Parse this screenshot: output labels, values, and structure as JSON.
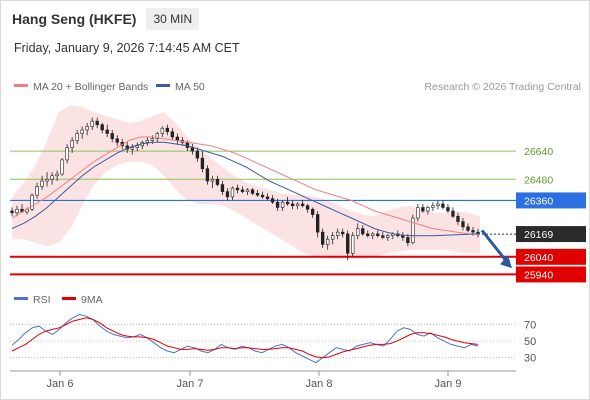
{
  "header": {
    "title": "Hang Seng (HKFE)",
    "interval": "30 MIN",
    "timestamp": "Friday, January 9, 2026 7:14:45 AM CET"
  },
  "legend": {
    "bollinger": "MA 20 + Bollinger Bands",
    "ma50": "MA 50",
    "copyright": "Research © 2026 Trading Central",
    "bollinger_color": "#f08080",
    "ma50_color": "#3a5ba0"
  },
  "rsi_legend": {
    "rsi": "RSI",
    "ma9": "9MA",
    "rsi_color": "#4a72d0",
    "ma9_color": "#e00000"
  },
  "chart_data": [
    {
      "type": "candlestick",
      "ylim": [
        25880,
        26930
      ],
      "x_labels": [
        "Jan 6",
        "Jan 7",
        "Jan 8",
        "Jan 9"
      ],
      "current_price": "26169",
      "levels": [
        {
          "label": "26640",
          "value": 26640,
          "kind": "target",
          "color": "#8dc060"
        },
        {
          "label": "26480",
          "value": 26480,
          "kind": "target",
          "color": "#8dc060"
        },
        {
          "label": "26360",
          "value": 26360,
          "kind": "pivot",
          "color": "#2c6fe0"
        },
        {
          "label": "26040",
          "value": 26040,
          "kind": "support",
          "color": "#e00000"
        },
        {
          "label": "25940",
          "value": 25940,
          "kind": "support",
          "color": "#e00000"
        }
      ],
      "forecast": {
        "from": 26190,
        "to": 25975,
        "color": "#2c5aa0"
      },
      "candles": [
        [
          26300,
          26320,
          26270,
          26290
        ],
        [
          26290,
          26330,
          26270,
          26310
        ],
        [
          26310,
          26340,
          26290,
          26295
        ],
        [
          26295,
          26320,
          26280,
          26310
        ],
        [
          26310,
          26400,
          26300,
          26390
        ],
        [
          26390,
          26460,
          26370,
          26440
        ],
        [
          26440,
          26500,
          26420,
          26470
        ],
        [
          26470,
          26520,
          26440,
          26480
        ],
        [
          26480,
          26520,
          26450,
          26500
        ],
        [
          26500,
          26530,
          26470,
          26510
        ],
        [
          26510,
          26600,
          26500,
          26590
        ],
        [
          26590,
          26680,
          26570,
          26660
        ],
        [
          26660,
          26720,
          26630,
          26700
        ],
        [
          26700,
          26760,
          26680,
          26740
        ],
        [
          26740,
          26780,
          26710,
          26760
        ],
        [
          26760,
          26800,
          26730,
          26780
        ],
        [
          26780,
          26830,
          26760,
          26810
        ],
        [
          26810,
          26830,
          26770,
          26790
        ],
        [
          26790,
          26800,
          26740,
          26760
        ],
        [
          26760,
          26790,
          26720,
          26740
        ],
        [
          26740,
          26760,
          26690,
          26710
        ],
        [
          26710,
          26730,
          26670,
          26690
        ],
        [
          26690,
          26710,
          26650,
          26670
        ],
        [
          26670,
          26690,
          26630,
          26650
        ],
        [
          26650,
          26680,
          26620,
          26660
        ],
        [
          26660,
          26690,
          26640,
          26670
        ],
        [
          26670,
          26700,
          26650,
          26690
        ],
        [
          26690,
          26720,
          26670,
          26700
        ],
        [
          26700,
          26730,
          26680,
          26710
        ],
        [
          26710,
          26750,
          26690,
          26740
        ],
        [
          26740,
          26780,
          26720,
          26770
        ],
        [
          26770,
          26790,
          26730,
          26750
        ],
        [
          26750,
          26770,
          26700,
          26720
        ],
        [
          26720,
          26740,
          26680,
          26700
        ],
        [
          26700,
          26720,
          26670,
          26690
        ],
        [
          26690,
          26700,
          26640,
          26660
        ],
        [
          26660,
          26680,
          26620,
          26640
        ],
        [
          26640,
          26660,
          26580,
          26600
        ],
        [
          26600,
          26640,
          26520,
          26540
        ],
        [
          26540,
          26560,
          26450,
          26470
        ],
        [
          26470,
          26500,
          26430,
          26480
        ],
        [
          26480,
          26500,
          26440,
          26450
        ],
        [
          26450,
          26470,
          26390,
          26410
        ],
        [
          26410,
          26430,
          26360,
          26380
        ],
        [
          26380,
          26440,
          26360,
          26430
        ],
        [
          26430,
          26450,
          26400,
          26420
        ],
        [
          26420,
          26440,
          26400,
          26410
        ],
        [
          26410,
          26430,
          26390,
          26420
        ],
        [
          26420,
          26430,
          26390,
          26400
        ],
        [
          26400,
          26420,
          26380,
          26390
        ],
        [
          26390,
          26410,
          26370,
          26380
        ],
        [
          26380,
          26400,
          26360,
          26370
        ],
        [
          26370,
          26390,
          26340,
          26350
        ],
        [
          26350,
          26370,
          26300,
          26320
        ],
        [
          26320,
          26360,
          26300,
          26350
        ],
        [
          26350,
          26380,
          26330,
          26340
        ],
        [
          26340,
          26360,
          26310,
          26330
        ],
        [
          26330,
          26350,
          26310,
          26340
        ],
        [
          26340,
          26360,
          26320,
          26330
        ],
        [
          26330,
          26340,
          26290,
          26310
        ],
        [
          26310,
          26320,
          26260,
          26280
        ],
        [
          26280,
          26300,
          26150,
          26180
        ],
        [
          26180,
          26200,
          26090,
          26110
        ],
        [
          26110,
          26160,
          26080,
          26140
        ],
        [
          26140,
          26180,
          26110,
          26160
        ],
        [
          26160,
          26200,
          26140,
          26180
        ],
        [
          26180,
          26200,
          26150,
          26170
        ],
        [
          26170,
          26190,
          26020,
          26060
        ],
        [
          26060,
          26180,
          26040,
          26160
        ],
        [
          26160,
          26230,
          26140,
          26200
        ],
        [
          26200,
          26220,
          26160,
          26170
        ],
        [
          26170,
          26190,
          26150,
          26160
        ],
        [
          26160,
          26180,
          26140,
          26170
        ],
        [
          26170,
          26190,
          26150,
          26160
        ],
        [
          26160,
          26180,
          26140,
          26150
        ],
        [
          26150,
          26170,
          26130,
          26160
        ],
        [
          26160,
          26180,
          26140,
          26170
        ],
        [
          26170,
          26190,
          26150,
          26160
        ],
        [
          26160,
          26180,
          26130,
          26150
        ],
        [
          26150,
          26170,
          26100,
          26120
        ],
        [
          26120,
          26280,
          26110,
          26260
        ],
        [
          26260,
          26340,
          26240,
          26320
        ],
        [
          26320,
          26340,
          26290,
          26300
        ],
        [
          26300,
          26330,
          26280,
          26320
        ],
        [
          26320,
          26350,
          26300,
          26330
        ],
        [
          26330,
          26360,
          26310,
          26340
        ],
        [
          26340,
          26360,
          26310,
          26320
        ],
        [
          26320,
          26340,
          26290,
          26300
        ],
        [
          26300,
          26320,
          26260,
          26270
        ],
        [
          26270,
          26290,
          26220,
          26240
        ],
        [
          26240,
          26260,
          26190,
          26210
        ],
        [
          26210,
          26230,
          26180,
          26190
        ],
        [
          26190,
          26210,
          26160,
          26180
        ],
        [
          26180,
          26200,
          26150,
          26169
        ]
      ],
      "ma20": [
        26260,
        26300,
        26340,
        26380,
        26430,
        26480,
        26530,
        26580,
        26620,
        26660,
        26700,
        26720,
        26720,
        26710,
        26700,
        26690,
        26680,
        26670,
        26650,
        26630,
        26600,
        26570,
        26540,
        26510,
        26480,
        26450,
        26420,
        26400,
        26380,
        26360,
        26330,
        26300,
        26280,
        26260,
        26240,
        26220,
        26200,
        26190,
        26180,
        26170,
        26168
      ],
      "bb_upper": [
        26380,
        26460,
        26560,
        26700,
        26860,
        26900,
        26890,
        26860,
        26840,
        26820,
        26800,
        26810,
        26840,
        26860,
        26800,
        26720,
        26660,
        26600,
        26550,
        26500,
        26460,
        26440,
        26420,
        26400,
        26390,
        26390,
        26380,
        26360,
        26330,
        26300,
        26280,
        26270,
        26300,
        26320,
        26330,
        26310,
        26290,
        26290,
        26300,
        26290,
        26270
      ],
      "bb_lower": [
        26140,
        26140,
        26120,
        26100,
        26120,
        26200,
        26330,
        26450,
        26520,
        26560,
        26580,
        26580,
        26560,
        26500,
        26420,
        26360,
        26340,
        26340,
        26330,
        26300,
        26260,
        26220,
        26180,
        26140,
        26100,
        26060,
        26040,
        26030,
        26030,
        26030,
        26030,
        26040,
        26060,
        26070,
        26080,
        26080,
        26080,
        26080,
        26070,
        26060,
        26060
      ],
      "ma50": [
        26200,
        26230,
        26270,
        26320,
        26380,
        26440,
        26500,
        26550,
        26590,
        26630,
        26660,
        26680,
        26690,
        26690,
        26680,
        26670,
        26650,
        26630,
        26610,
        26580,
        26550,
        26510,
        26470,
        26440,
        26410,
        26380,
        26350,
        26320,
        26290,
        26260,
        26230,
        26200,
        26180,
        26165,
        26160,
        26160,
        26160,
        26162,
        26165,
        26168,
        26170
      ]
    },
    {
      "type": "line",
      "ylim": [
        20,
        85
      ],
      "yticks": [
        "70",
        "50",
        "30"
      ],
      "rsi": [
        45,
        52,
        60,
        66,
        68,
        62,
        58,
        64,
        72,
        78,
        82,
        80,
        76,
        68,
        62,
        58,
        56,
        54,
        55,
        58,
        54,
        48,
        42,
        38,
        36,
        40,
        44,
        42,
        38,
        36,
        40,
        46,
        42,
        40,
        44,
        42,
        38,
        36,
        40,
        44,
        46,
        42,
        36,
        32,
        28,
        24,
        30,
        36,
        42,
        40,
        38,
        44,
        46,
        48,
        46,
        44,
        52,
        62,
        66,
        64,
        58,
        56,
        60,
        54,
        50,
        46,
        44,
        42,
        46,
        44
      ],
      "ma9": [
        38,
        42,
        46,
        52,
        58,
        62,
        64,
        66,
        70,
        74,
        76,
        78,
        76,
        72,
        66,
        62,
        58,
        56,
        55,
        55,
        54,
        52,
        48,
        44,
        42,
        40,
        40,
        41,
        40,
        39,
        40,
        42,
        42,
        41,
        42,
        42,
        41,
        40,
        40,
        41,
        42,
        42,
        40,
        38,
        34,
        31,
        30,
        31,
        34,
        37,
        39,
        41,
        43,
        45,
        46,
        46,
        47,
        50,
        54,
        58,
        60,
        60,
        59,
        57,
        55,
        52,
        50,
        48,
        47,
        46
      ]
    }
  ]
}
